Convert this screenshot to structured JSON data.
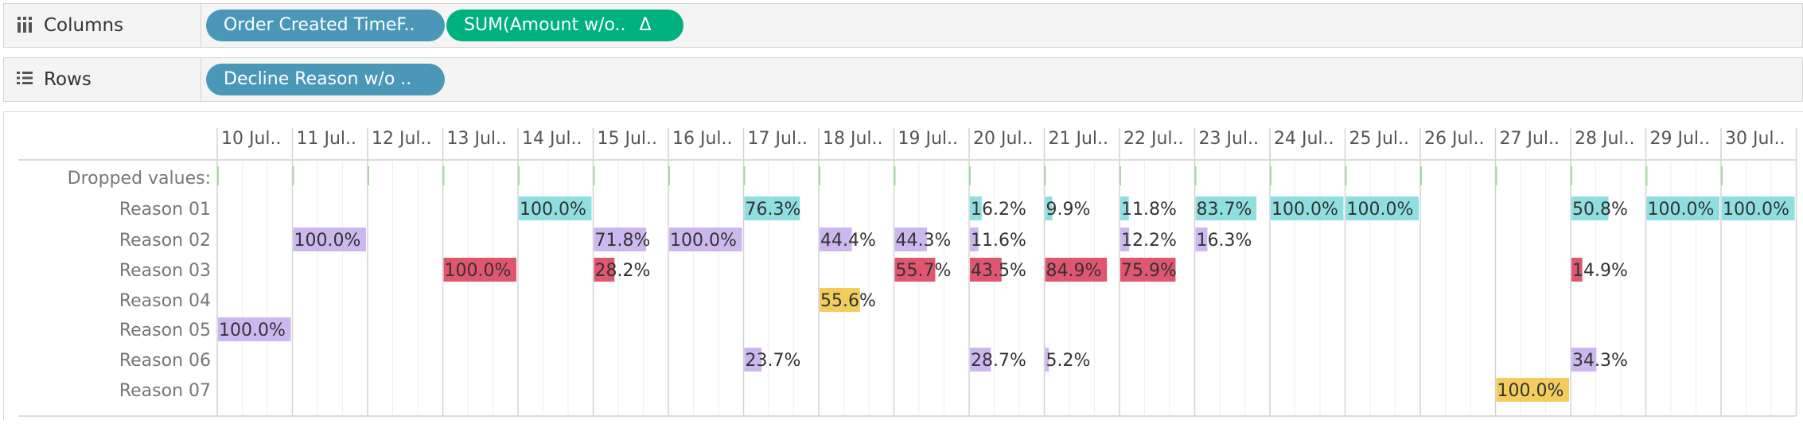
{
  "columns_shelf": {
    "label": "Columns",
    "icon": "columns-icon",
    "pills": [
      {
        "text": "Order Created TimeF..",
        "kind": "dimension"
      },
      {
        "text": "SUM(Amount w/o..",
        "kind": "measure",
        "badge": "Δ"
      }
    ]
  },
  "rows_shelf": {
    "label": "Rows",
    "icon": "rows-icon",
    "pills": [
      {
        "text": "Decline Reason w/o ..",
        "kind": "dimension"
      }
    ]
  },
  "colors": {
    "dimension_pill": "#4a97b8",
    "measure_pill": "#00b180",
    "teal": "#8fdfe0",
    "purple": "#cdb7ef",
    "red": "#e0566e",
    "yellow": "#f2cd5e"
  },
  "chart_data": {
    "type": "bar",
    "columns": [
      "10 Jul..",
      "11 Jul..",
      "12 Jul..",
      "13 Jul..",
      "14 Jul..",
      "15 Jul..",
      "16 Jul..",
      "17 Jul..",
      "18 Jul..",
      "19 Jul..",
      "20 Jul..",
      "21 Jul..",
      "22 Jul..",
      "23 Jul..",
      "24 Jul..",
      "25 Jul..",
      "26 Jul..",
      "27 Jul..",
      "28 Jul..",
      "29 Jul..",
      "30 Jul.."
    ],
    "rows": [
      "Dropped values:",
      "Reason 01",
      "Reason 02",
      "Reason 03",
      "Reason 04",
      "Reason 05",
      "Reason 06",
      "Reason 07"
    ],
    "series": [
      {
        "name": "Reason 01",
        "color": "teal",
        "values": [
          null,
          null,
          null,
          null,
          100.0,
          null,
          null,
          76.3,
          null,
          null,
          16.2,
          9.9,
          11.8,
          83.7,
          100.0,
          100.0,
          null,
          null,
          50.8,
          100.0,
          100.0
        ]
      },
      {
        "name": "Reason 02",
        "color": "purple",
        "values": [
          null,
          100.0,
          null,
          null,
          null,
          71.8,
          100.0,
          null,
          44.4,
          44.3,
          11.6,
          null,
          12.2,
          16.3,
          null,
          null,
          null,
          null,
          null,
          null,
          null
        ]
      },
      {
        "name": "Reason 03",
        "color": "red",
        "values": [
          null,
          null,
          null,
          100.0,
          null,
          28.2,
          null,
          null,
          null,
          55.7,
          43.5,
          84.9,
          75.9,
          null,
          null,
          null,
          null,
          null,
          14.9,
          null,
          null
        ]
      },
      {
        "name": "Reason 04",
        "color": "yellow",
        "values": [
          null,
          null,
          null,
          null,
          null,
          null,
          null,
          null,
          55.6,
          null,
          null,
          null,
          null,
          null,
          null,
          null,
          null,
          null,
          null,
          null,
          null
        ]
      },
      {
        "name": "Reason 05",
        "color": "purple",
        "values": [
          100.0,
          null,
          null,
          null,
          null,
          null,
          null,
          null,
          null,
          null,
          null,
          null,
          null,
          null,
          null,
          null,
          null,
          null,
          null,
          null,
          null
        ]
      },
      {
        "name": "Reason 06",
        "color": "purple",
        "values": [
          null,
          null,
          null,
          null,
          null,
          null,
          null,
          23.7,
          null,
          null,
          28.7,
          5.2,
          null,
          null,
          null,
          null,
          null,
          null,
          34.3,
          null,
          null
        ]
      },
      {
        "name": "Reason 07",
        "color": "yellow",
        "values": [
          null,
          null,
          null,
          null,
          null,
          null,
          null,
          null,
          null,
          null,
          null,
          null,
          null,
          null,
          null,
          null,
          null,
          100.0,
          null,
          null,
          null
        ]
      }
    ],
    "value_format": "percent, one decimal",
    "xlim": [
      0,
      100
    ]
  }
}
